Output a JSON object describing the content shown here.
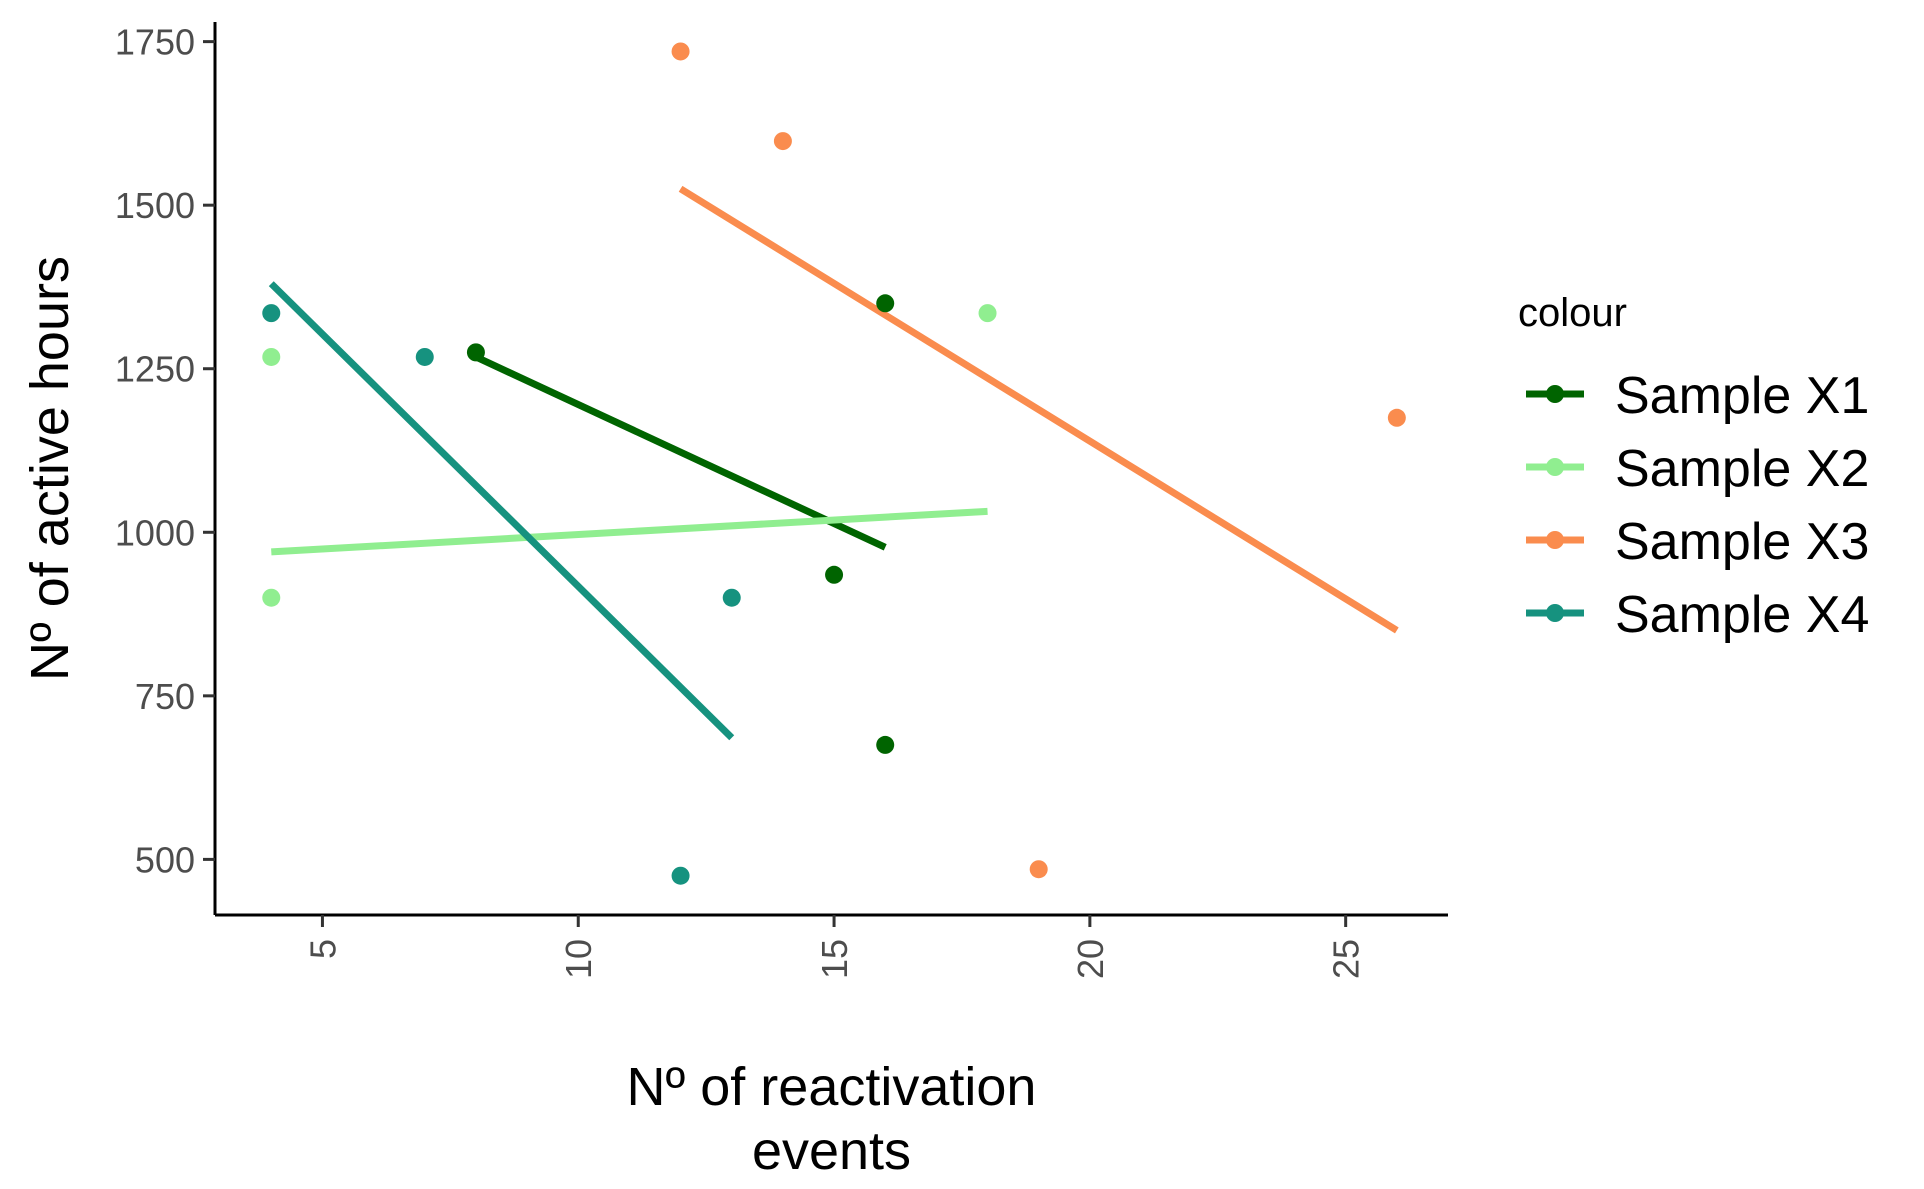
{
  "chart_data": {
    "type": "scatter",
    "title": "",
    "xlabel_lines": [
      "Nº of reactivation",
      "events"
    ],
    "ylabel": "Nº of active hours",
    "xlim": [
      2.9,
      27
    ],
    "ylim": [
      415,
      1780
    ],
    "x_ticks": [
      5,
      10,
      15,
      20,
      25
    ],
    "y_ticks": [
      500,
      750,
      1000,
      1250,
      1500,
      1750
    ],
    "grid": false,
    "legend": {
      "title": "colour",
      "placement": "right"
    },
    "series": [
      {
        "name": "Sample X1",
        "color": "#006400",
        "points": [
          [
            8,
            1275
          ],
          [
            15,
            935
          ],
          [
            16,
            1350
          ],
          [
            16,
            675
          ]
        ],
        "fit": [
          [
            8,
            1268
          ],
          [
            16,
            977
          ]
        ]
      },
      {
        "name": "Sample X2",
        "color": "#90EE90",
        "points": [
          [
            4,
            1268
          ],
          [
            4,
            900
          ],
          [
            18,
            1335
          ]
        ],
        "fit": [
          [
            4,
            970
          ],
          [
            18,
            1032
          ]
        ]
      },
      {
        "name": "Sample X3",
        "color": "#FA8C4E",
        "points": [
          [
            12,
            1735
          ],
          [
            14,
            1598
          ],
          [
            19,
            485
          ],
          [
            26,
            1175
          ]
        ],
        "fit": [
          [
            12,
            1525
          ],
          [
            26,
            850
          ]
        ]
      },
      {
        "name": "Sample X4",
        "color": "#16927F",
        "points": [
          [
            4,
            1335
          ],
          [
            7,
            1268
          ],
          [
            13,
            900
          ],
          [
            12,
            475
          ]
        ],
        "fit": [
          [
            4,
            1380
          ],
          [
            13,
            686
          ]
        ]
      }
    ]
  }
}
